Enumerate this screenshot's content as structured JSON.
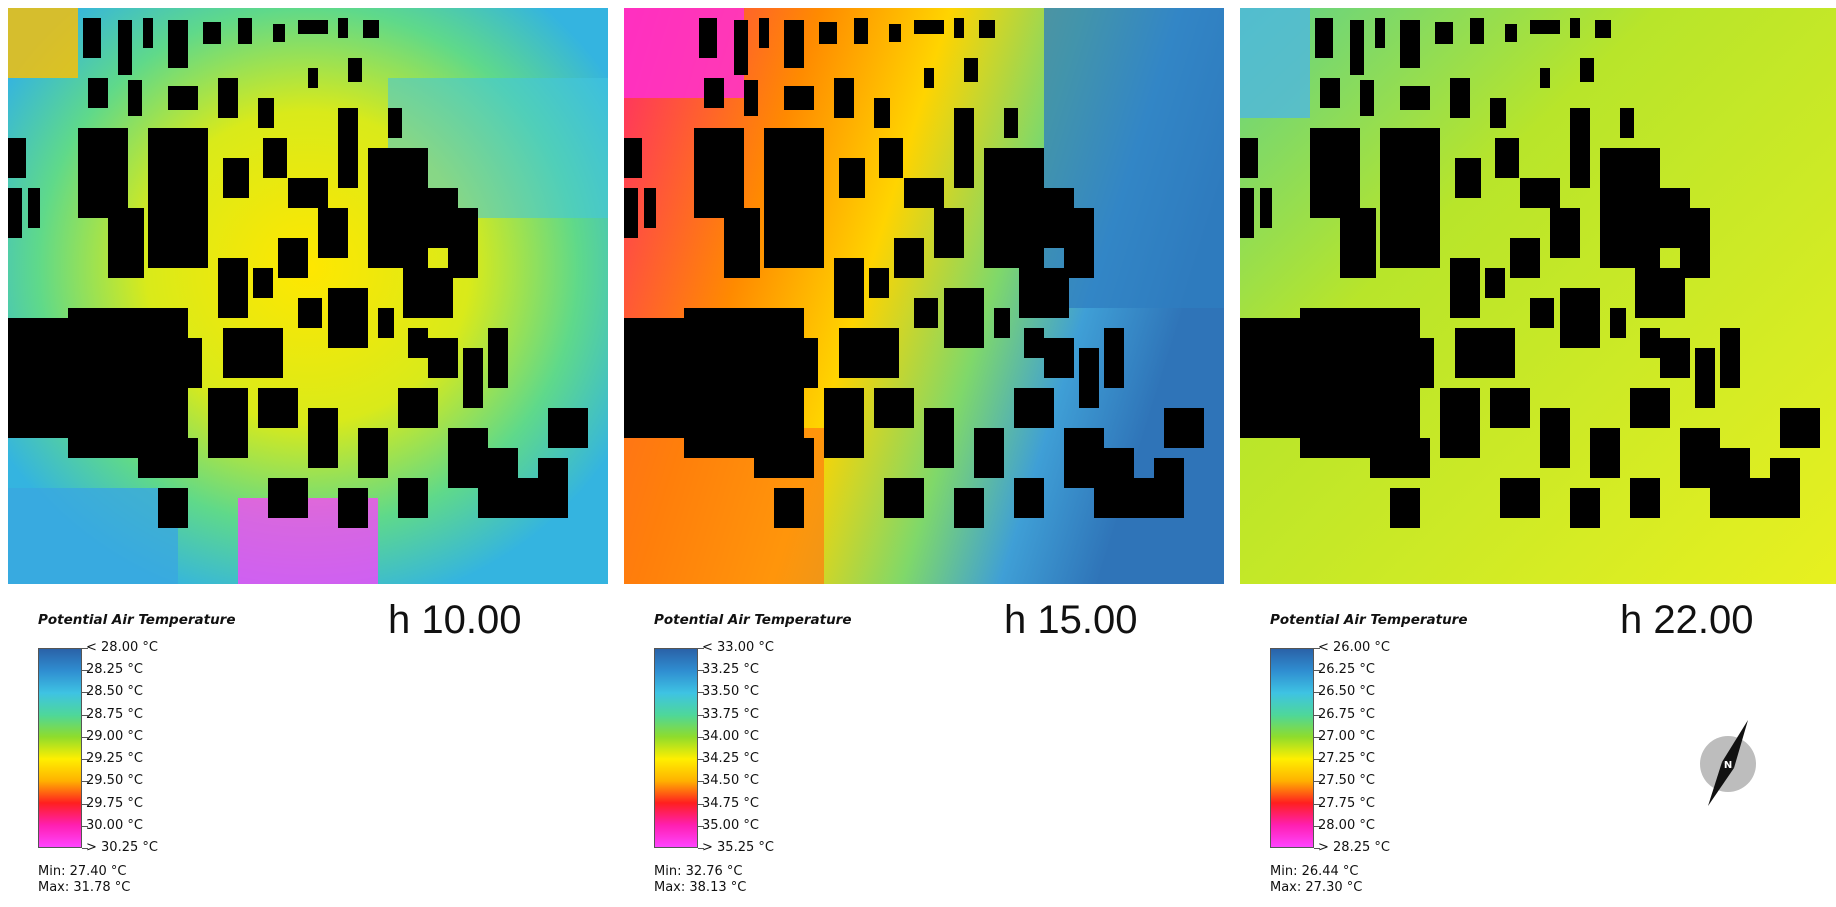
{
  "panels": [
    {
      "hour": "h 10.00",
      "legend_title": "Potential Air Temperature",
      "ticks": [
        "< 28.00 °C",
        "28.25  °C",
        "28.50  °C",
        "28.75  °C",
        "29.00  °C",
        "29.25  °C",
        "29.50  °C",
        "29.75  °C",
        "30.00  °C",
        "> 30.25 °C"
      ],
      "min": "Min: 27.40 °C",
      "max": "Max: 31.78 °C"
    },
    {
      "hour": "h 15.00",
      "legend_title": "Potential Air Temperature",
      "ticks": [
        "< 33.00 °C",
        "33.25  °C",
        "33.50  °C",
        "33.75  °C",
        "34.00  °C",
        "34.25  °C",
        "34.50  °C",
        "34.75  °C",
        "35.00  °C",
        "> 35.25 °C"
      ],
      "min": "Min: 32.76 °C",
      "max": "Max: 38.13 °C"
    },
    {
      "hour": "h 22.00",
      "legend_title": "Potential Air Temperature",
      "ticks": [
        "< 26.00 °C",
        "26.25  °C",
        "26.50  °C",
        "26.75  °C",
        "27.00  °C",
        "27.25  °C",
        "27.50  °C",
        "27.75  °C",
        "28.00  °C",
        "> 28.25 °C"
      ],
      "min": "Min: 26.44 °C",
      "max": "Max: 27.30 °C"
    }
  ],
  "colors": {
    "scale": [
      "#2a62a8",
      "#2f8ed1",
      "#3ec3e3",
      "#4ed79a",
      "#8fdc2c",
      "#ffef00",
      "#ffb100",
      "#ff1f1f",
      "#ff1fb0",
      "#ff44ff"
    ],
    "building": "#000000",
    "map_backgrounds": [
      "#c9e82a",
      "#ff5a2a",
      "#c9e82a"
    ]
  },
  "north_label": "N"
}
